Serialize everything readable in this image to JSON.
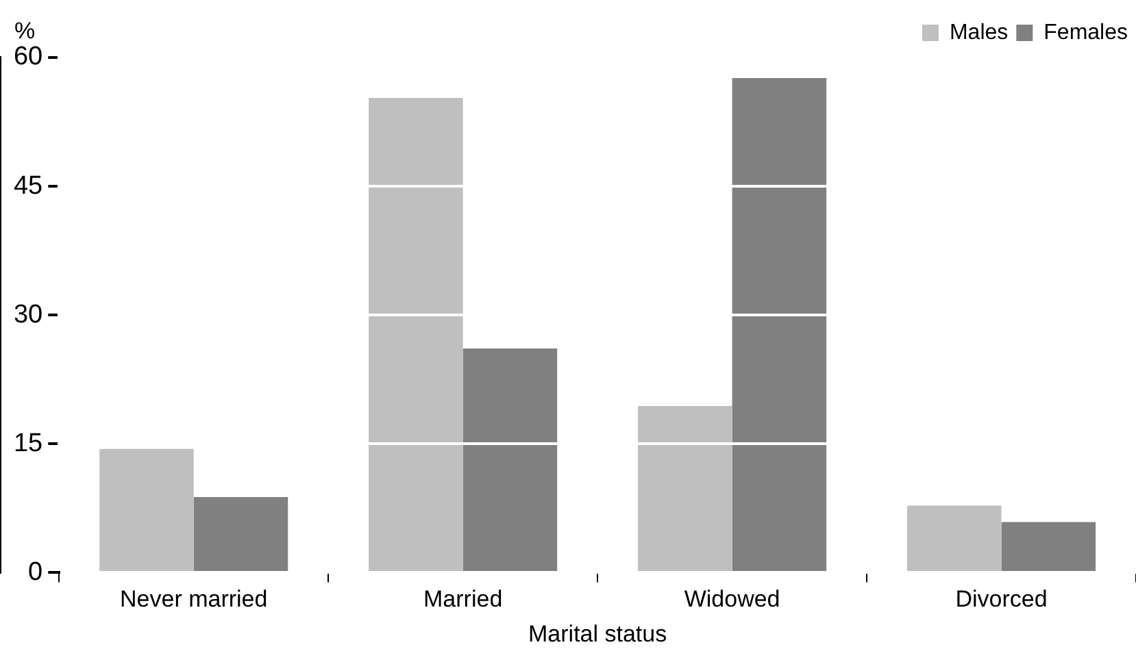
{
  "chart_data": {
    "type": "bar",
    "xlabel": "Marital status",
    "ylabel": "%",
    "categories": [
      "Never married",
      "Married",
      "Widowed",
      "Divorced"
    ],
    "series": [
      {
        "name": "Males",
        "color": "#bfbfbf",
        "values": [
          14.4,
          55.3,
          19.4,
          7.8
        ]
      },
      {
        "name": "Females",
        "color": "#808080",
        "values": [
          8.8,
          26.1,
          57.6,
          5.9
        ]
      }
    ],
    "ylim": [
      0,
      60
    ],
    "yticks": [
      0,
      15,
      30,
      45,
      60
    ],
    "grid": "y",
    "legend": "top right"
  }
}
